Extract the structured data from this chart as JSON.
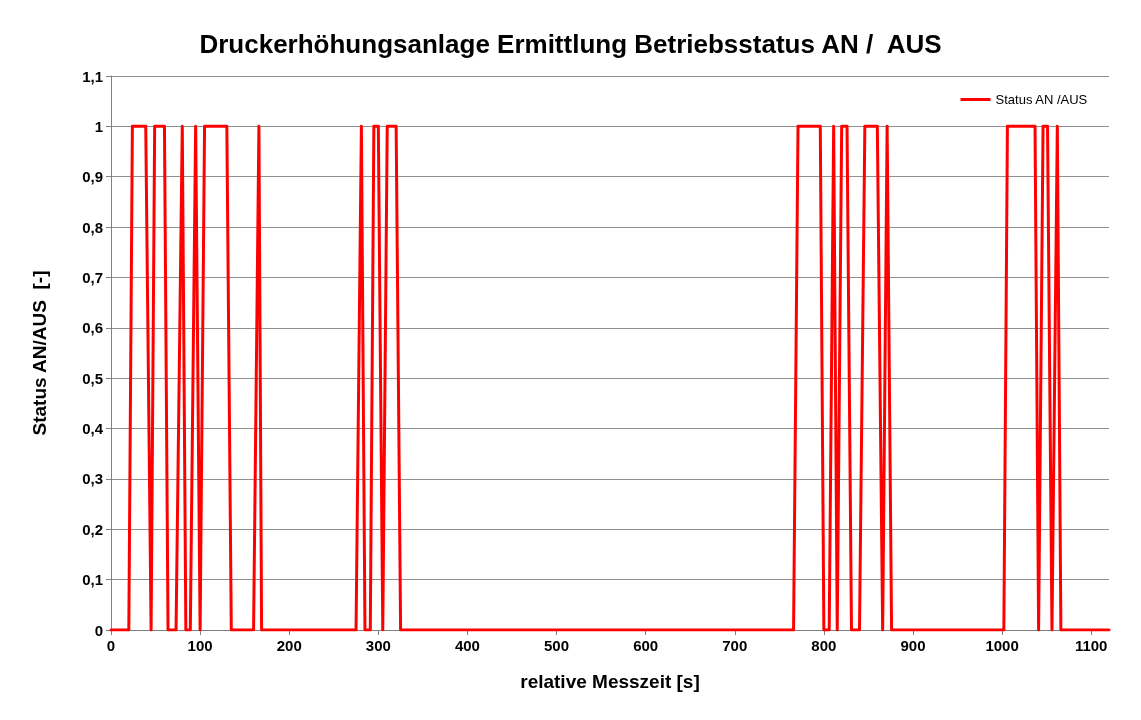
{
  "chart_data": {
    "type": "line",
    "title": "Druckerhöhungsanlage Ermittlung Betriebsstatus AN /  AUS",
    "xlabel": "relative Messzeit [s]",
    "ylabel": "Status AN/AUS  [-]",
    "x": [
      0,
      20,
      24,
      39,
      45,
      49,
      60,
      64,
      73,
      80,
      84,
      89,
      95,
      100,
      105,
      130,
      135,
      160,
      166,
      169,
      275,
      281,
      285,
      291,
      295,
      300,
      305,
      310,
      320,
      325,
      766,
      771,
      796,
      800,
      806,
      811,
      815,
      820,
      826,
      831,
      840,
      846,
      860,
      866,
      871,
      876,
      1002,
      1006,
      1037,
      1041,
      1046,
      1051,
      1056,
      1062,
      1066,
      1120
    ],
    "series": [
      {
        "name": "Status AN /AUS",
        "color": "#ff0000",
        "values": [
          0,
          0,
          1,
          1,
          0,
          1,
          1,
          0,
          0,
          1,
          0,
          0,
          1,
          0,
          1,
          1,
          0,
          0,
          1,
          0,
          0,
          1,
          0,
          0,
          1,
          1,
          0,
          1,
          1,
          0,
          0,
          1,
          1,
          0,
          0,
          1,
          0,
          1,
          1,
          0,
          0,
          1,
          1,
          0,
          1,
          0,
          0,
          1,
          1,
          0,
          1,
          1,
          0,
          1,
          0,
          0
        ]
      }
    ],
    "xlim": [
      0,
      1120
    ],
    "xticks": [
      0,
      100,
      200,
      300,
      400,
      500,
      600,
      700,
      800,
      900,
      1000,
      1100
    ],
    "ylim": [
      0,
      1.1
    ],
    "yticks": [
      0,
      {
        "value": 0.1,
        "label": "0,1"
      },
      {
        "value": 0.2,
        "label": "0,2"
      },
      {
        "value": 0.3,
        "label": "0,3"
      },
      {
        "value": 0.4,
        "label": "0,4"
      },
      {
        "value": 0.5,
        "label": "0,5"
      },
      {
        "value": 0.6,
        "label": "0,6"
      },
      {
        "value": 0.7,
        "label": "0,7"
      },
      {
        "value": 0.8,
        "label": "0,8"
      },
      {
        "value": 0.9,
        "label": "0,9"
      },
      1,
      {
        "value": 1.1,
        "label": "1,1"
      }
    ],
    "grid": "y",
    "legend": "top right",
    "marker": "none",
    "line_style": "solid"
  }
}
